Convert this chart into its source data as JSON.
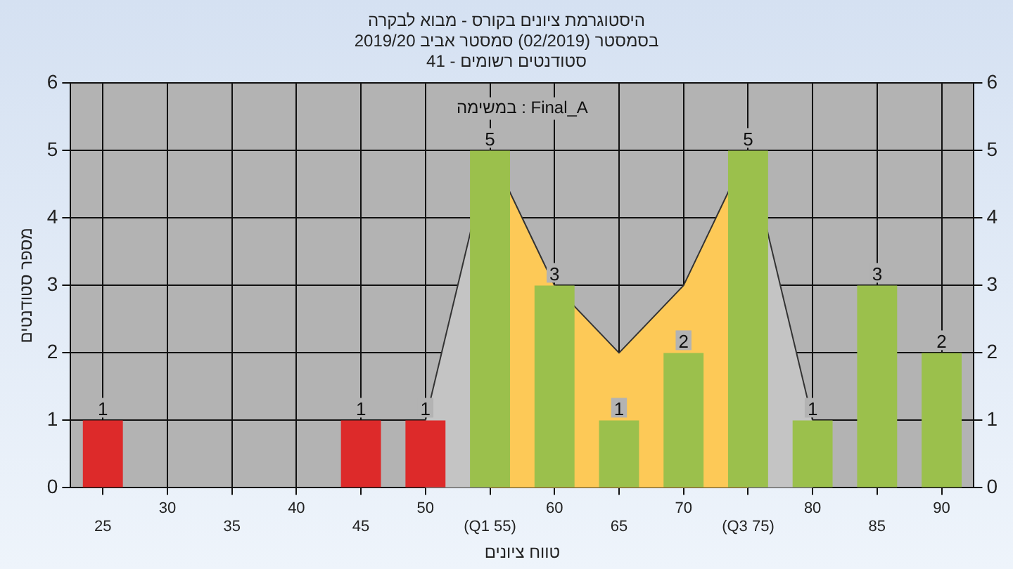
{
  "chart_data": {
    "type": "bar",
    "title": "היסטוגרמת ציונים בקורס - מבוא לבקרה",
    "subtitle": "בסמסטר (02/2019) סמסטר אביב 2019/20\nסטודנטים רשומים - 41",
    "xlabel": "טווח ציונים",
    "ylabel": "מספר סטודנטים",
    "annotations": [
      "במשימה : Final_A"
    ],
    "categories": [
      "25",
      "30",
      "35",
      "40",
      "45",
      "50",
      "(Q1 55)",
      "60",
      "65",
      "70",
      "(Q3 75)",
      "80",
      "85",
      "90"
    ],
    "series": [
      {
        "type": "area",
        "color": "#c4c4c4",
        "values": [
          null,
          null,
          null,
          null,
          null,
          1,
          5,
          null,
          null,
          null,
          null,
          null,
          null,
          null
        ]
      },
      {
        "type": "area",
        "color": "#c4c4c4",
        "values": [
          null,
          null,
          null,
          null,
          null,
          null,
          null,
          null,
          null,
          null,
          5,
          1,
          null,
          null
        ]
      },
      {
        "type": "area",
        "color": "#fdc957",
        "values": [
          null,
          null,
          null,
          null,
          null,
          null,
          5,
          3,
          2,
          3,
          5,
          null,
          null,
          null
        ]
      },
      {
        "values": [
          1,
          0,
          0,
          0,
          1,
          1,
          5,
          3,
          1,
          2,
          5,
          1,
          3,
          2
        ],
        "colors": [
          "#dd2a2a",
          "#dd2a2a",
          "#dd2a2a",
          "#dd2a2a",
          "#dd2a2a",
          "#dd2a2a",
          "#9bc04c",
          "#9bc04c",
          "#9bc04c",
          "#9bc04c",
          "#9bc04c",
          "#9bc04c",
          "#9bc04c",
          "#9bc04c"
        ],
        "value_labels": [
          "1",
          null,
          null,
          null,
          "1",
          "1",
          "5",
          "3",
          "1",
          "2",
          "5",
          "1",
          "3",
          "2"
        ]
      }
    ],
    "ylim": [
      0,
      6
    ],
    "yticks": [
      0,
      1,
      2,
      3,
      4,
      5,
      6
    ],
    "y2lim": [
      0,
      6
    ],
    "y2ticks": [
      0,
      1,
      2,
      3,
      4,
      5,
      6
    ],
    "grid": true,
    "legend": false
  }
}
